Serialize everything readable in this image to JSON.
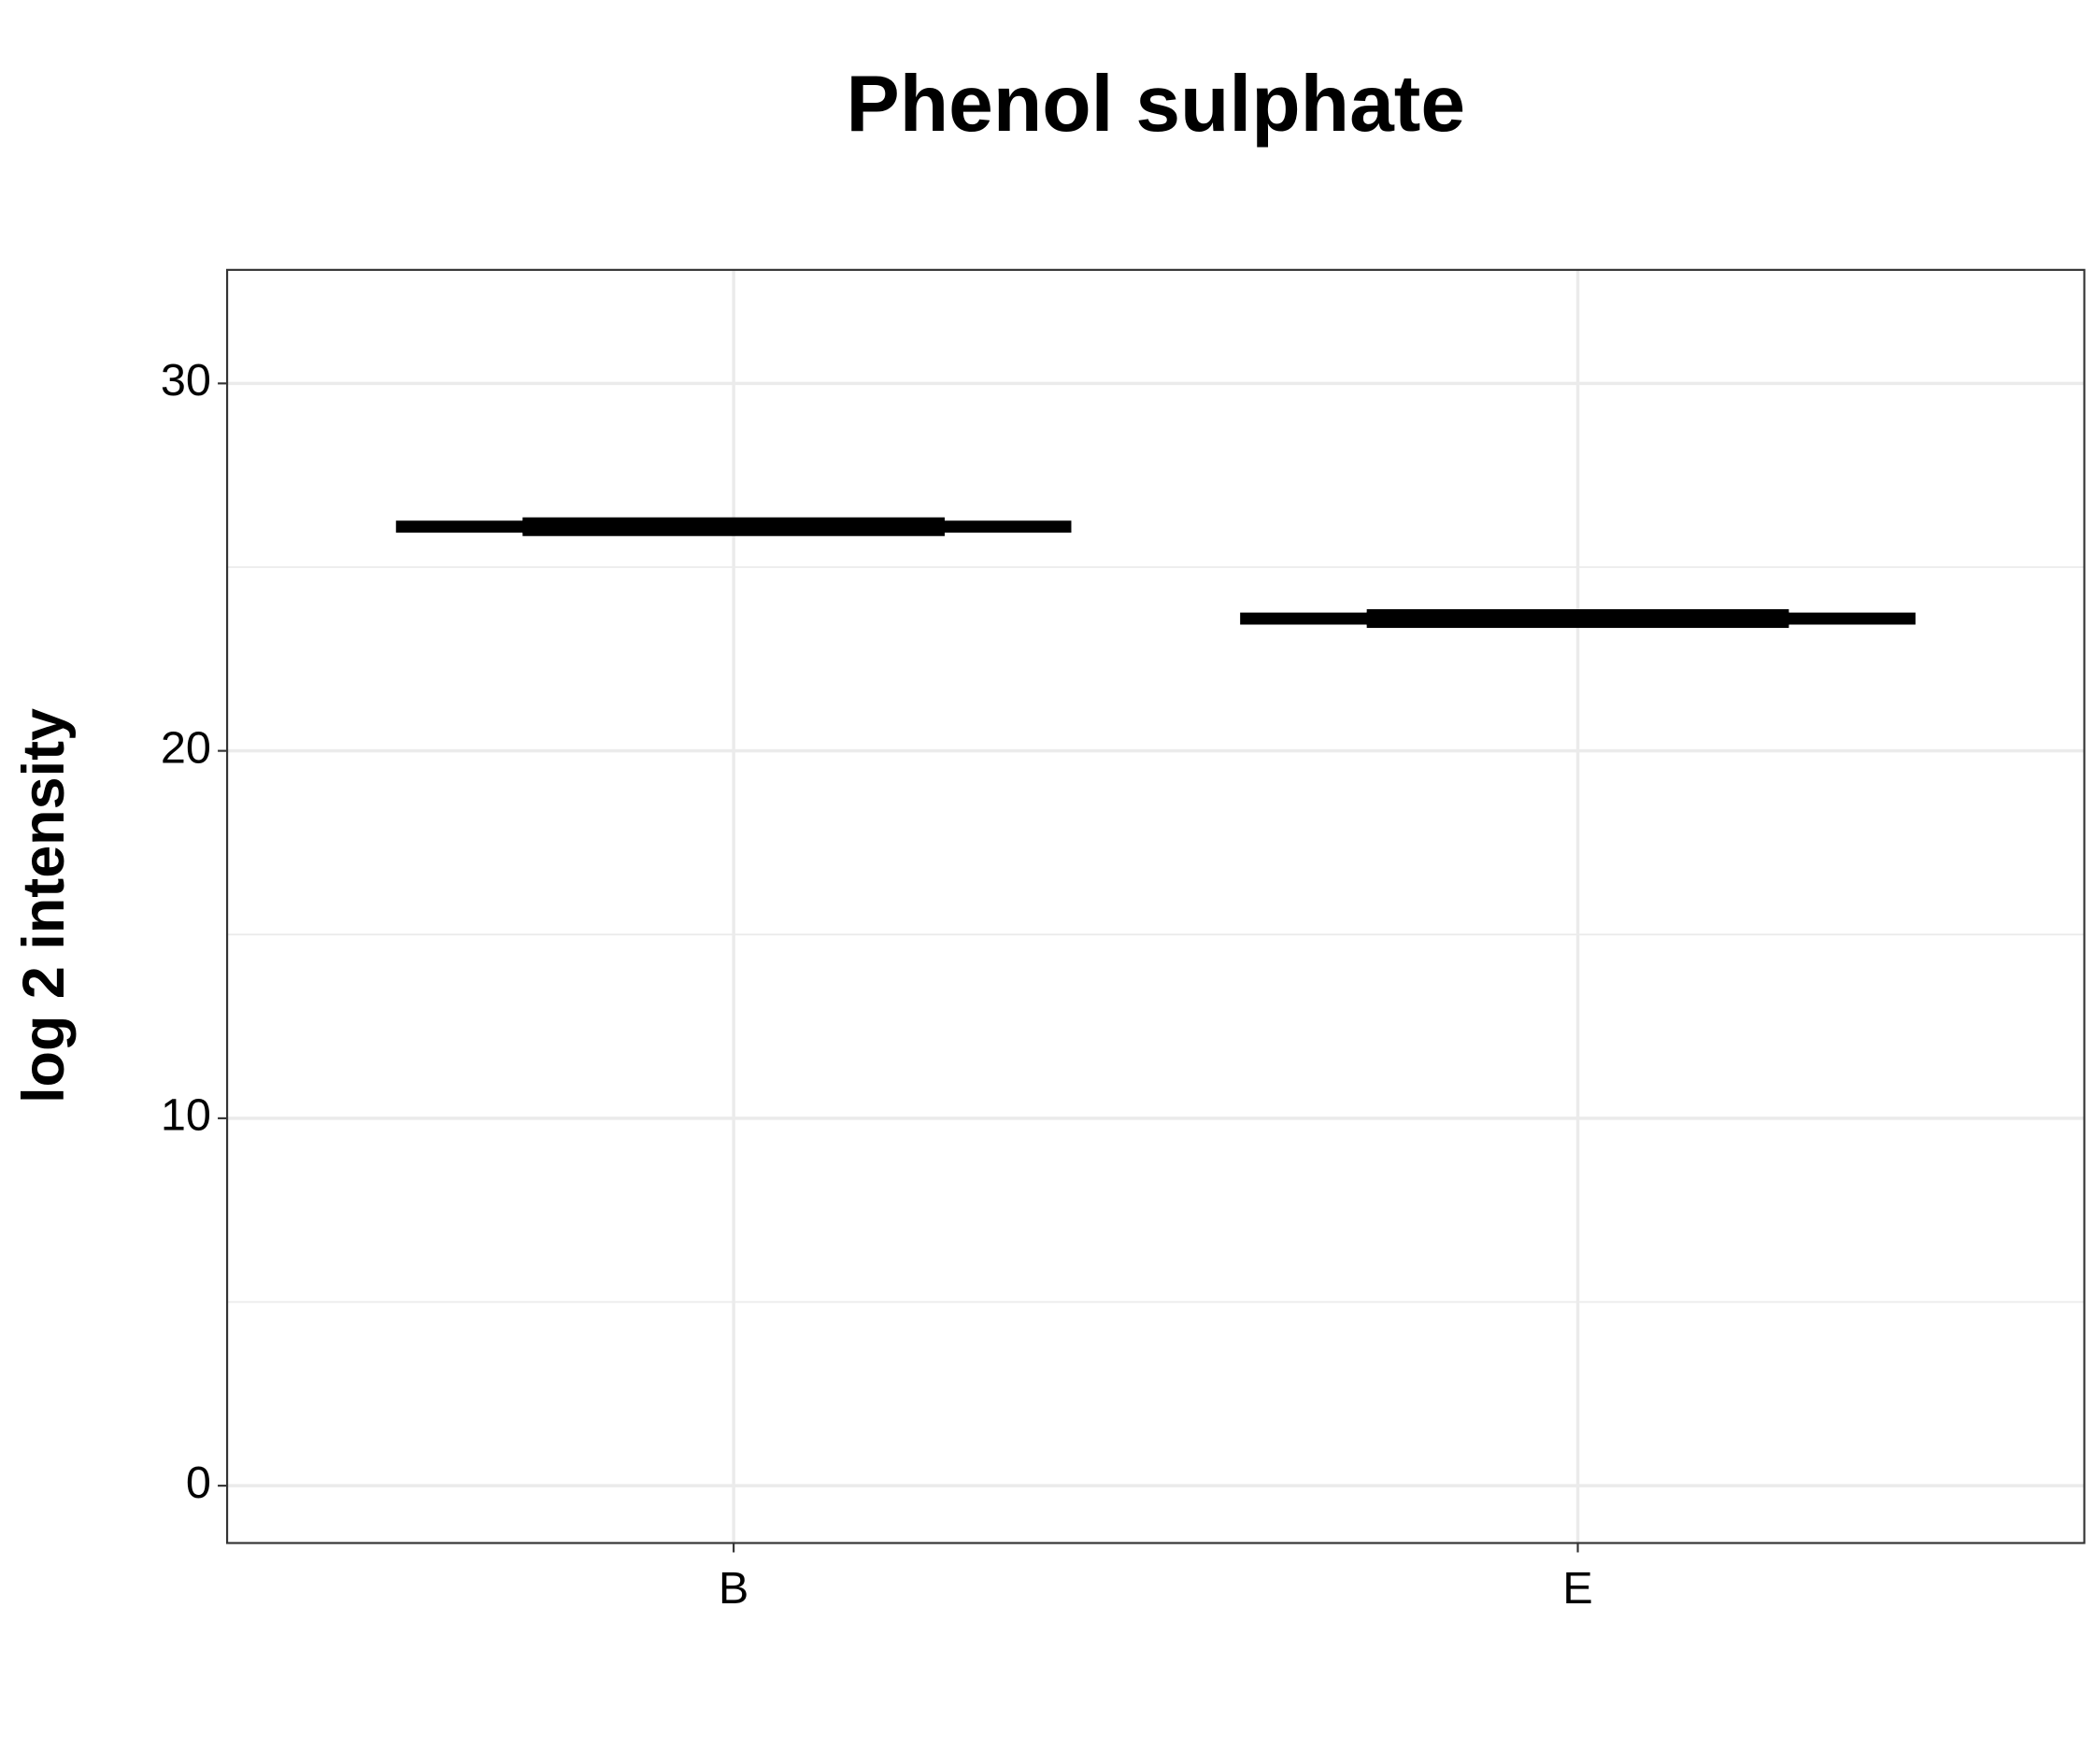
{
  "chart_data": {
    "type": "box",
    "title": "Phenol sulphate",
    "y_label": "log 2 intensity",
    "categories": [
      "B",
      "E"
    ],
    "q1": [
      25.95,
      23.45
    ],
    "median": [
      26.1,
      23.6
    ],
    "q3": [
      26.25,
      23.75
    ],
    "color": "#000000",
    "ylim": [
      -1.56,
      33.09
    ],
    "yticks": [
      0,
      10,
      20,
      30
    ],
    "minor_yticks": [
      5,
      15,
      25
    ],
    "grid": true
  }
}
